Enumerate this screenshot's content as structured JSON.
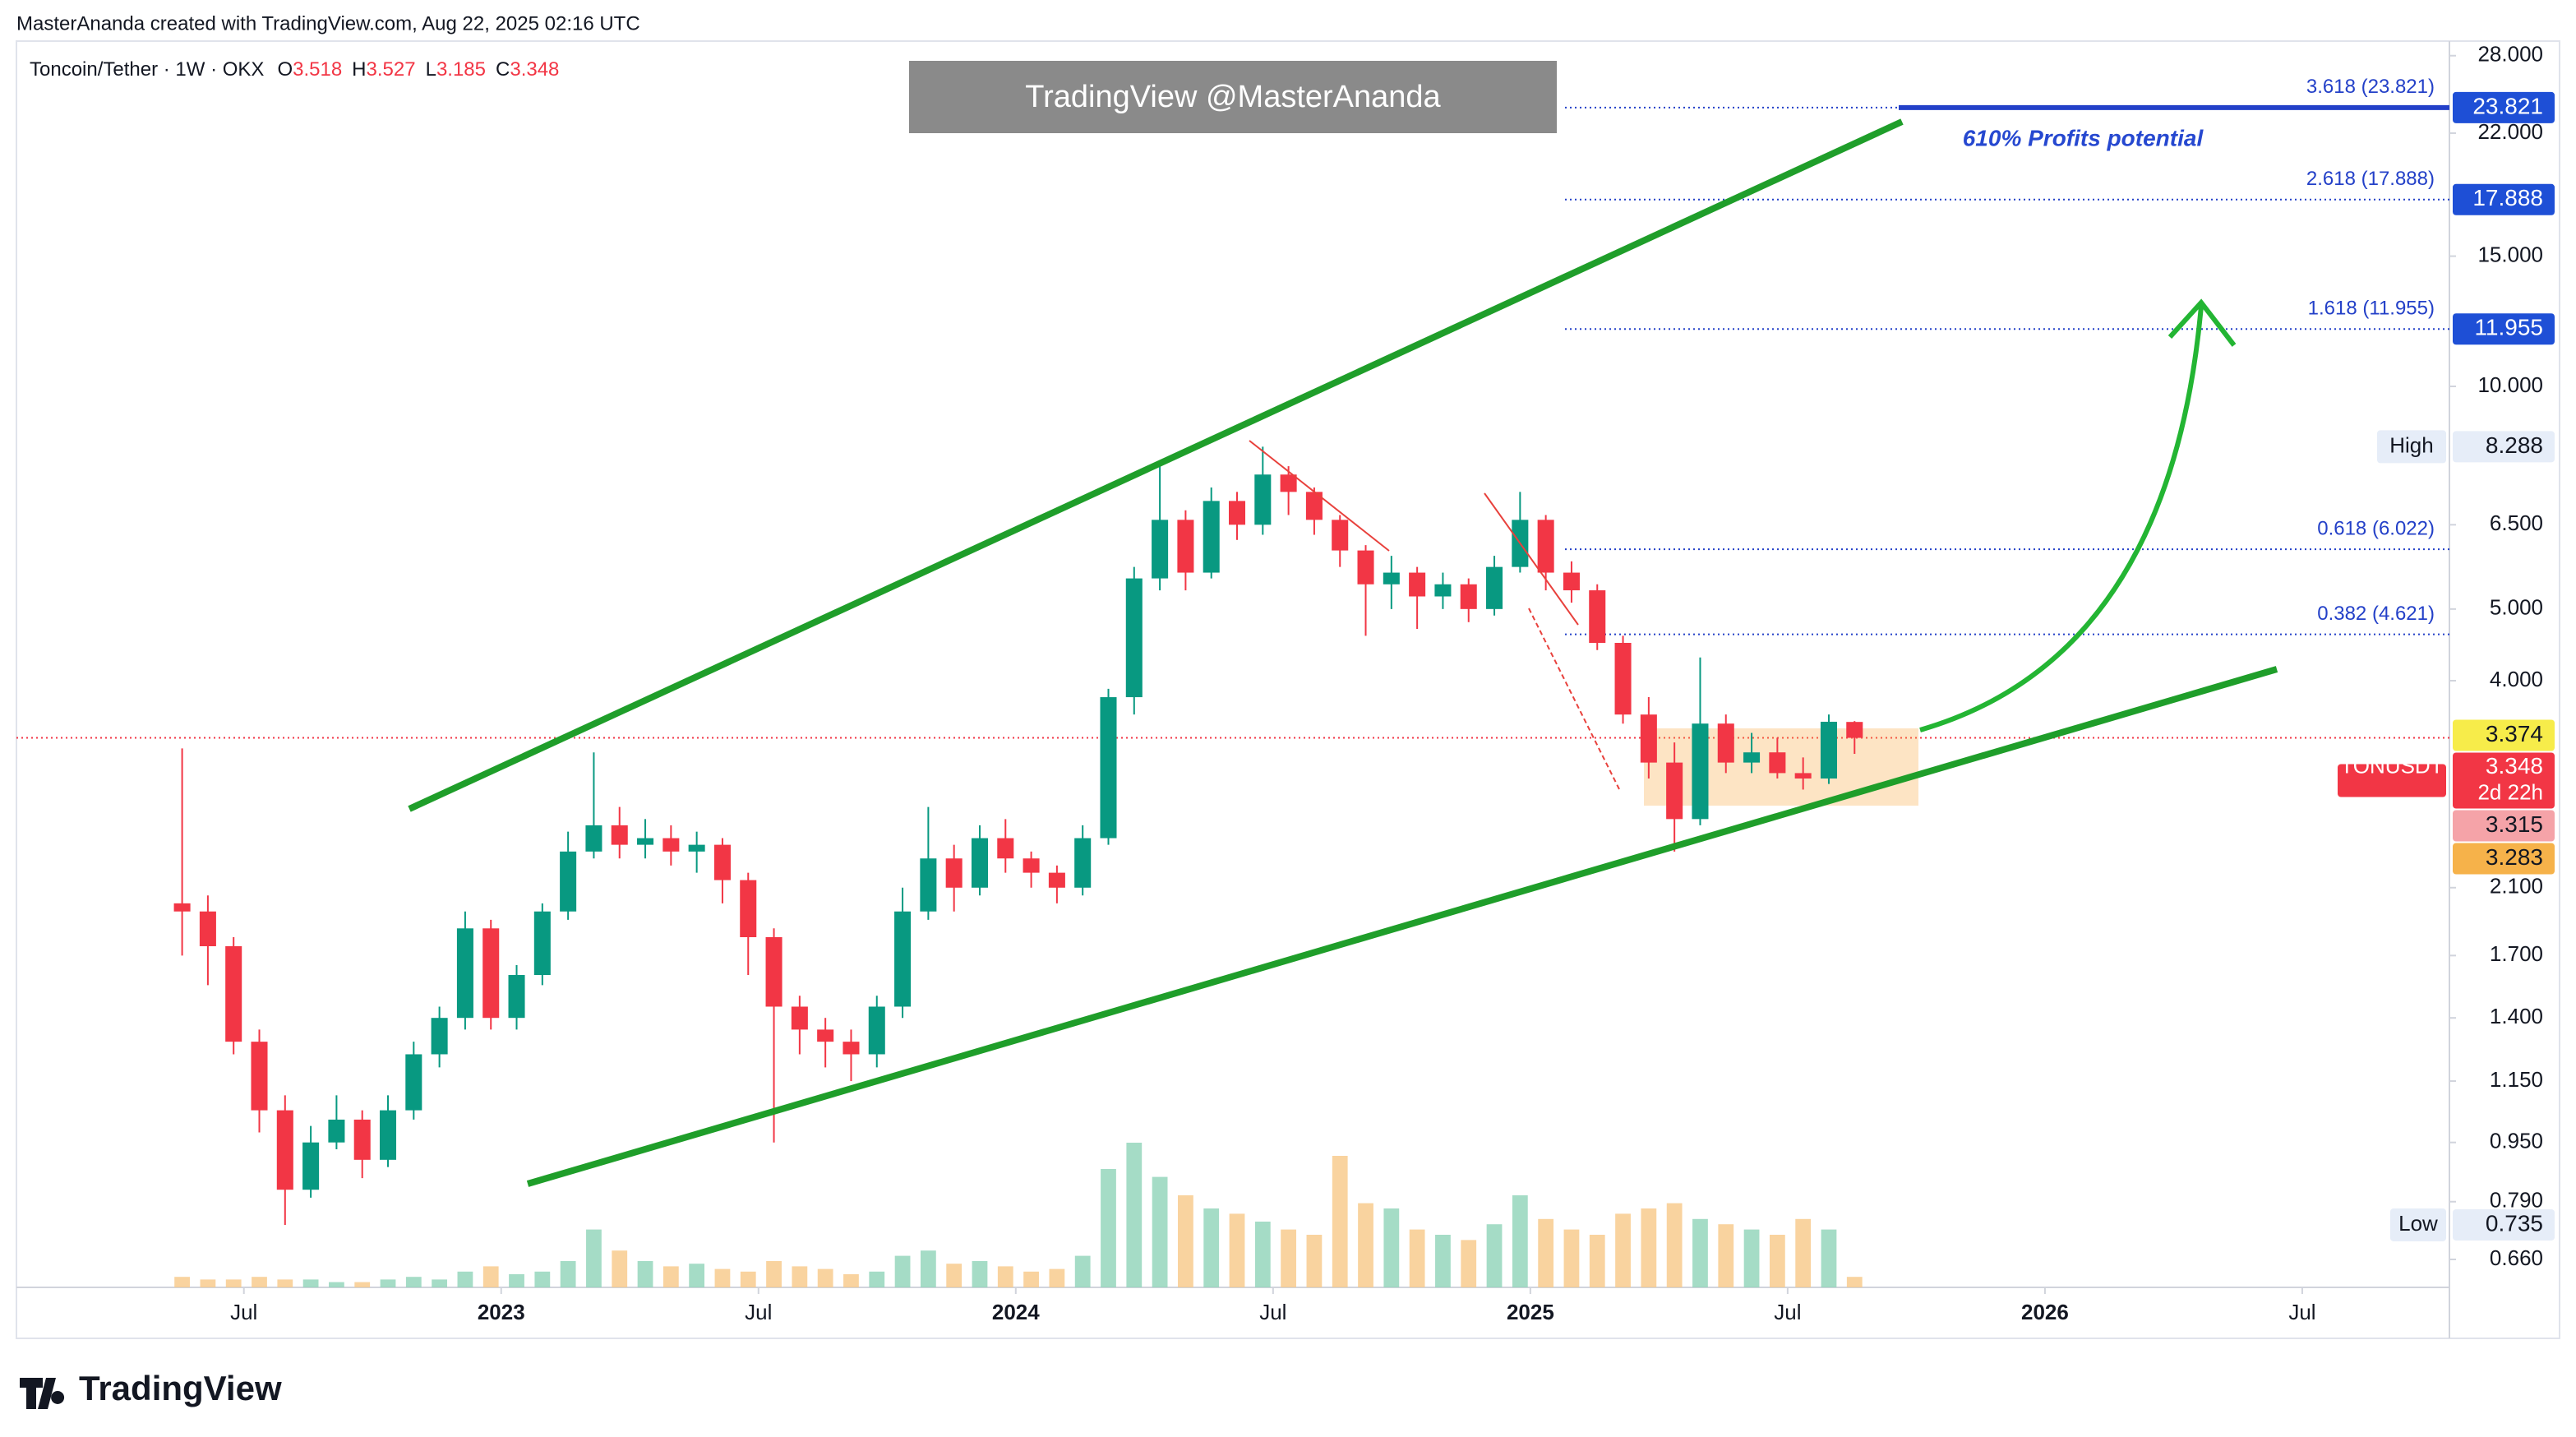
{
  "chart_data": {
    "type": "candlestick",
    "header": "MasterAnanda created with TradingView.com, Aug 22, 2025 02:16 UTC",
    "title": "Toncoin/Tether · 1W · OKX",
    "ohlc_legend": [
      {
        "name": "O",
        "value": 3.518
      },
      {
        "name": "H",
        "value": 3.527
      },
      {
        "name": "L",
        "value": 3.185
      },
      {
        "name": "C",
        "value": 3.348
      }
    ],
    "watermark": "TradingView @MasterAnanda",
    "annotation": "610% Profits potential",
    "logo": "TradingView",
    "log_scale": true,
    "up_color": "#089981",
    "down_color": "#f23645",
    "x": [
      2022.38,
      2022.43,
      2022.48,
      2022.53,
      2022.58,
      2022.63,
      2022.68,
      2022.73,
      2022.78,
      2022.83,
      2022.88,
      2022.93,
      2022.98,
      2023.03,
      2023.08,
      2023.13,
      2023.18,
      2023.23,
      2023.28,
      2023.33,
      2023.38,
      2023.43,
      2023.48,
      2023.53,
      2023.58,
      2023.63,
      2023.68,
      2023.73,
      2023.78,
      2023.83,
      2023.88,
      2023.93,
      2023.98,
      2024.03,
      2024.08,
      2024.13,
      2024.18,
      2024.23,
      2024.28,
      2024.33,
      2024.38,
      2024.43,
      2024.48,
      2024.53,
      2024.58,
      2024.63,
      2024.68,
      2024.73,
      2024.78,
      2024.83,
      2024.88,
      2024.93,
      2024.98,
      2025.03,
      2025.08,
      2025.13,
      2025.18,
      2025.23,
      2025.28,
      2025.33,
      2025.38,
      2025.43,
      2025.48,
      2025.53,
      2025.58,
      2025.63
    ],
    "open": [
      2.0,
      1.95,
      1.75,
      1.3,
      1.05,
      0.82,
      0.95,
      1.02,
      0.9,
      1.05,
      1.25,
      1.4,
      1.85,
      1.4,
      1.6,
      1.95,
      2.35,
      2.55,
      2.4,
      2.45,
      2.35,
      2.4,
      2.15,
      1.8,
      1.45,
      1.35,
      1.3,
      1.25,
      1.45,
      1.95,
      2.3,
      2.1,
      2.45,
      2.3,
      2.2,
      2.1,
      2.45,
      3.8,
      5.5,
      6.6,
      5.6,
      7.0,
      6.5,
      7.6,
      7.2,
      6.6,
      6.0,
      5.4,
      5.6,
      5.2,
      5.4,
      5.0,
      5.7,
      6.6,
      5.6,
      5.3,
      4.5,
      3.6,
      3.1,
      2.6,
      3.5,
      3.1,
      3.2,
      3.0,
      2.95,
      3.518
    ],
    "high": [
      3.24,
      2.05,
      1.8,
      1.35,
      1.1,
      1.0,
      1.1,
      1.05,
      1.1,
      1.3,
      1.45,
      1.95,
      1.9,
      1.65,
      2.0,
      2.5,
      3.2,
      2.7,
      2.6,
      2.55,
      2.5,
      2.45,
      2.2,
      1.85,
      1.5,
      1.4,
      1.35,
      1.5,
      2.1,
      2.7,
      2.4,
      2.55,
      2.6,
      2.35,
      2.25,
      2.55,
      3.9,
      5.7,
      7.9,
      6.8,
      7.3,
      7.2,
      8.288,
      7.8,
      7.3,
      6.7,
      6.1,
      5.9,
      5.7,
      5.6,
      5.5,
      5.9,
      7.2,
      6.7,
      5.8,
      5.4,
      4.6,
      3.8,
      3.3,
      4.3,
      3.6,
      3.4,
      3.35,
      3.15,
      3.6,
      3.527
    ],
    "low": [
      1.7,
      1.55,
      1.25,
      0.98,
      0.735,
      0.8,
      0.93,
      0.85,
      0.88,
      1.02,
      1.2,
      1.35,
      1.35,
      1.35,
      1.55,
      1.9,
      2.3,
      2.3,
      2.3,
      2.25,
      2.2,
      2.0,
      1.6,
      0.95,
      1.25,
      1.2,
      1.15,
      1.2,
      1.4,
      1.9,
      1.95,
      2.05,
      2.2,
      2.1,
      2.0,
      2.05,
      2.4,
      3.6,
      5.3,
      5.3,
      5.5,
      6.2,
      6.3,
      6.7,
      6.3,
      5.7,
      4.6,
      5.0,
      4.7,
      5.0,
      4.8,
      4.9,
      5.6,
      5.3,
      5.1,
      4.4,
      3.5,
      2.95,
      2.35,
      2.55,
      3.0,
      3.0,
      2.95,
      2.85,
      2.9,
      3.185
    ],
    "close": [
      1.95,
      1.75,
      1.3,
      1.05,
      0.82,
      0.95,
      1.02,
      0.9,
      1.05,
      1.25,
      1.4,
      1.85,
      1.4,
      1.6,
      1.95,
      2.35,
      2.55,
      2.4,
      2.45,
      2.35,
      2.4,
      2.15,
      1.8,
      1.45,
      1.35,
      1.3,
      1.25,
      1.45,
      1.95,
      2.3,
      2.1,
      2.45,
      2.3,
      2.2,
      2.1,
      2.45,
      3.8,
      5.5,
      6.6,
      5.6,
      7.0,
      6.5,
      7.6,
      7.2,
      6.6,
      6.0,
      5.4,
      5.6,
      5.2,
      5.4,
      5.0,
      5.7,
      6.6,
      5.6,
      5.3,
      4.5,
      3.6,
      3.1,
      2.6,
      3.5,
      3.1,
      3.2,
      3.0,
      2.95,
      3.52,
      3.348
    ],
    "volume": [
      4,
      3,
      3,
      4,
      3,
      3,
      2,
      2,
      3,
      4,
      3,
      6,
      8,
      5,
      6,
      10,
      22,
      14,
      10,
      8,
      9,
      7,
      6,
      10,
      8,
      7,
      5,
      6,
      12,
      14,
      9,
      10,
      8,
      6,
      7,
      12,
      45,
      55,
      42,
      35,
      30,
      28,
      25,
      22,
      20,
      50,
      32,
      30,
      22,
      20,
      18,
      24,
      35,
      26,
      22,
      20,
      28,
      30,
      32,
      26,
      24,
      22,
      20,
      26,
      22,
      4
    ],
    "xlim": [
      2022.058,
      2026.786
    ],
    "xticks": [
      {
        "value": 2022.5,
        "label": "Jul"
      },
      2023,
      {
        "value": 2023.5,
        "label": "Jul"
      },
      2024,
      {
        "value": 2024.5,
        "label": "Jul"
      },
      2025,
      {
        "value": 2025.5,
        "label": "Jul"
      },
      2026,
      {
        "value": 2026.5,
        "label": "Jul"
      }
    ],
    "ylim": [
      0.605,
      29.3
    ],
    "yticks": [
      {
        "value": 28,
        "label": "28.000"
      },
      {
        "value": 22,
        "label": "22.000"
      },
      {
        "value": 15,
        "label": "15.000"
      },
      {
        "value": 10,
        "label": "10.000"
      },
      {
        "value": 6.5,
        "label": "6.500"
      },
      {
        "value": 5,
        "label": "5.000"
      },
      {
        "value": 4,
        "label": "4.000"
      },
      {
        "value": 2.1,
        "label": "2.100"
      },
      {
        "value": 1.7,
        "label": "1.700"
      },
      {
        "value": 1.4,
        "label": "1.400"
      },
      {
        "value": 1.15,
        "label": "1.150"
      },
      {
        "value": 0.95,
        "label": "0.950"
      },
      {
        "value": 0.79,
        "label": "0.790"
      },
      {
        "value": 0.66,
        "label": "0.660"
      }
    ],
    "fib_levels": [
      {
        "label": "3.618 (23.821)",
        "value": 23.821,
        "style": "solid"
      },
      {
        "label": "2.618 (17.888)",
        "value": 17.888
      },
      {
        "label": "1.618 (11.955)",
        "value": 11.955
      },
      {
        "label": "0.618 (6.022)",
        "value": 6.022
      },
      {
        "label": "0.382 (4.621)",
        "value": 4.621
      }
    ],
    "fib_color": "#2340c8",
    "last_price": 3.348,
    "badges": [
      {
        "value": 23.821,
        "color": "#1e4fd6"
      },
      {
        "value": 17.888,
        "color": "#1e4fd6"
      },
      {
        "value": 11.955,
        "color": "#1e4fd6"
      },
      {
        "value": 8.288,
        "tag": "High",
        "color": "#e6edf8",
        "text_color": "#131722"
      },
      {
        "value": 3.374,
        "color": "#f7ec4a",
        "text_color": "#131722"
      },
      {
        "value": 3.348,
        "tag": "TONUSDT",
        "sub": "2d 22h",
        "color": "#f23645"
      },
      {
        "value": 3.315,
        "color": "#f5a3a8",
        "text_color": "#131722"
      },
      {
        "value": 3.283,
        "color": "#f6b24a",
        "text_color": "#131722"
      },
      {
        "value": 0.735,
        "tag": "Low",
        "color": "#e6edf8",
        "text_color": "#131722"
      }
    ]
  }
}
